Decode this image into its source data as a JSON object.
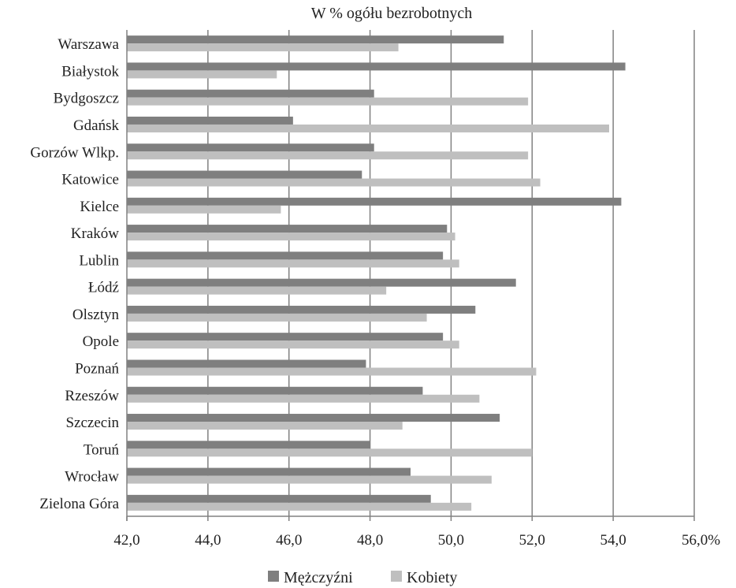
{
  "chart_data": {
    "type": "bar",
    "orientation": "horizontal",
    "title": "W % ogółu bezrobotnych",
    "categories": [
      "Warszawa",
      "Białystok",
      "Bydgoszcz",
      "Gdańsk",
      "Gorzów Wlkp.",
      "Katowice",
      "Kielce",
      "Kraków",
      "Lublin",
      "Łódź",
      "Olsztyn",
      "Opole",
      "Poznań",
      "Rzeszów",
      "Szczecin",
      "Toruń",
      "Wrocław",
      "Zielona Góra"
    ],
    "series": [
      {
        "name": "Mężczyźni",
        "color": "#7f7f7f",
        "values": [
          51.3,
          54.3,
          48.1,
          46.1,
          48.1,
          47.8,
          54.2,
          49.9,
          49.8,
          51.6,
          50.6,
          49.8,
          47.9,
          49.3,
          51.2,
          48.0,
          49.0,
          49.5
        ]
      },
      {
        "name": "Kobiety",
        "color": "#bfbfbf",
        "values": [
          48.7,
          45.7,
          51.9,
          53.9,
          51.9,
          52.2,
          45.8,
          50.1,
          50.2,
          48.4,
          49.4,
          50.2,
          52.1,
          50.7,
          48.8,
          52.0,
          51.0,
          50.5
        ]
      }
    ],
    "xlim": [
      42,
      56
    ],
    "x_ticks": [
      "42,0",
      "44,0",
      "46,0",
      "48,0",
      "50,0",
      "52,0",
      "54,0",
      "56,0%"
    ],
    "grid": true,
    "legend_position": "bottom"
  },
  "colors": {
    "gridline": "#808080",
    "axis": "#808080"
  }
}
